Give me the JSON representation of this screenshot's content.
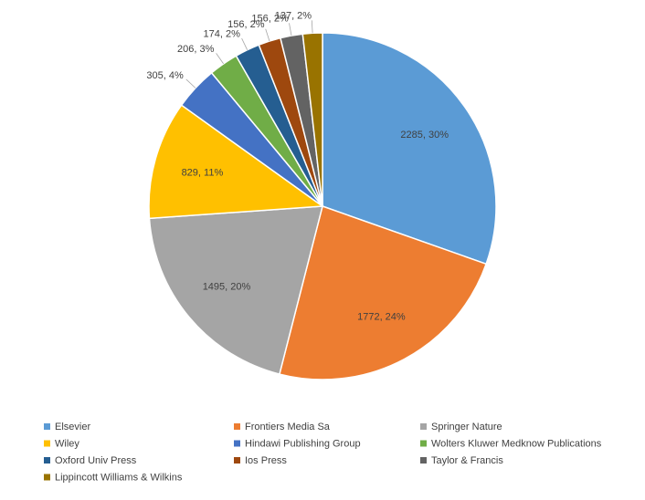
{
  "chart_data": {
    "type": "pie",
    "title": "",
    "start_angle_deg": 0,
    "direction": "clockwise",
    "legend_position": "bottom",
    "slices": [
      {
        "name": "Elsevier",
        "value": 2285,
        "percent_label": "30%",
        "label": "2285, 30%",
        "color": "#5B9BD5"
      },
      {
        "name": "Frontiers Media Sa",
        "value": 1772,
        "percent_label": "24%",
        "label": "1772, 24%",
        "color": "#ED7D31"
      },
      {
        "name": "Springer Nature",
        "value": 1495,
        "percent_label": "20%",
        "label": "1495, 20%",
        "color": "#A5A5A5"
      },
      {
        "name": "Wiley",
        "value": 829,
        "percent_label": "11%",
        "label": "829, 11%",
        "color": "#FFC000"
      },
      {
        "name": "Hindawi Publishing Group",
        "value": 305,
        "percent_label": "4%",
        "label": "305, 4%",
        "color": "#4472C4"
      },
      {
        "name": "Wolters Kluwer Medknow Publications",
        "value": 206,
        "percent_label": "3%",
        "label": "206, 3%",
        "color": "#70AD47"
      },
      {
        "name": "Oxford Univ Press",
        "value": 174,
        "percent_label": "2%",
        "label": "174, 2%",
        "color": "#255E91"
      },
      {
        "name": "Ios Press",
        "value": 156,
        "percent_label": "2%",
        "label": "156, 2%",
        "color": "#9E480E"
      },
      {
        "name": "Taylor & Francis",
        "value": 156,
        "percent_label": "2%",
        "label": "156, 2%",
        "color": "#636363"
      },
      {
        "name": "Lippincott Williams & Wilkins",
        "value": 137,
        "percent_label": "2%",
        "label": "137, 2%",
        "color": "#997300"
      }
    ]
  }
}
